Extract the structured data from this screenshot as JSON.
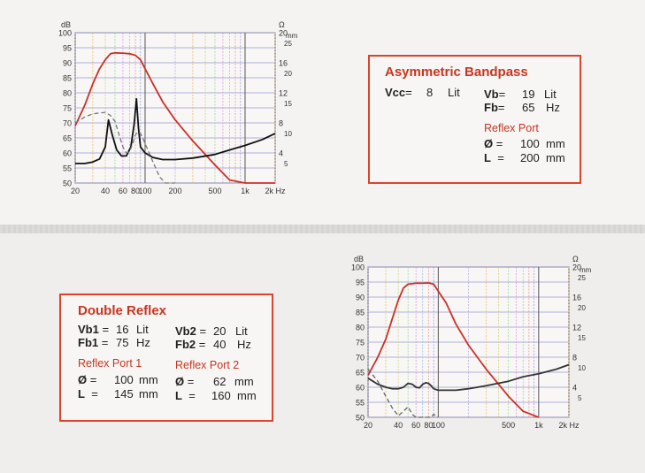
{
  "chart_data": [
    {
      "type": "line",
      "title": "",
      "x_scale": "log",
      "x_ticks": [
        "20",
        "40",
        "60",
        "80",
        "100",
        "200",
        "500",
        "1k",
        "2k Hz"
      ],
      "x_tick_values": [
        20,
        40,
        60,
        80,
        100,
        200,
        500,
        1000,
        2000
      ],
      "xlim": [
        20,
        2000
      ],
      "left_axis_unit": "dB",
      "left_ticks": [
        100,
        95,
        90,
        85,
        80,
        75,
        70,
        65,
        60,
        55,
        50
      ],
      "ylim": [
        50,
        100
      ],
      "right_axis_unit": "Ω",
      "right_axis_unit2": "mm",
      "right_ticks_ohm": [
        20,
        16,
        12,
        8,
        4
      ],
      "right_ticks_mm": [
        25,
        20,
        15,
        10,
        5
      ],
      "grid": true,
      "series": [
        {
          "color": "#cc2f26",
          "style": "solid",
          "x": [
            20,
            25,
            30,
            35,
            40,
            45,
            50,
            60,
            70,
            80,
            90,
            100,
            120,
            150,
            200,
            300,
            500,
            700,
            1000,
            1500,
            2000
          ],
          "y": [
            69,
            76,
            83,
            88,
            91,
            93,
            93.3,
            93.2,
            93,
            92.5,
            91,
            88,
            83,
            77,
            71,
            64,
            56,
            51,
            46,
            40,
            34
          ]
        },
        {
          "color": "#111111",
          "style": "solid",
          "x": [
            20,
            25,
            30,
            35,
            40,
            43,
            47,
            52,
            58,
            65,
            72,
            78,
            82,
            86,
            90,
            100,
            120,
            150,
            200,
            300,
            500,
            700,
            1000,
            1500,
            2000
          ],
          "y": [
            56.5,
            56.5,
            57,
            58,
            62,
            71,
            66,
            61,
            59,
            59,
            62,
            70,
            78,
            68,
            62,
            60,
            58.5,
            57.8,
            57.8,
            58.3,
            59.5,
            61,
            62.5,
            64.5,
            66.5
          ]
        },
        {
          "color": "#777777",
          "style": "dashed",
          "x": [
            20,
            25,
            30,
            35,
            40,
            45,
            50,
            55,
            60,
            65,
            70,
            75,
            80,
            85,
            90,
            95,
            100,
            110,
            120,
            140,
            160,
            180,
            200
          ],
          "y": [
            70,
            72,
            73,
            73.3,
            73.5,
            72.5,
            70.5,
            66,
            62,
            60,
            60.5,
            63,
            66,
            67,
            66.5,
            65,
            63,
            60,
            57,
            52,
            49,
            47,
            44
          ]
        }
      ]
    },
    {
      "type": "line",
      "title": "",
      "x_scale": "log",
      "x_ticks": [
        "20",
        "40",
        "60",
        "80",
        "100",
        "500",
        "1k",
        "2k Hz"
      ],
      "x_tick_values": [
        20,
        40,
        60,
        80,
        100,
        500,
        1000,
        2000
      ],
      "xlim": [
        20,
        2000
      ],
      "left_axis_unit": "dB",
      "left_ticks": [
        100,
        95,
        90,
        85,
        80,
        75,
        70,
        65,
        60,
        55,
        50
      ],
      "ylim": [
        50,
        100
      ],
      "right_axis_unit": "Ω",
      "right_axis_unit2": "mm",
      "right_ticks_ohm": [
        20,
        16,
        12,
        8,
        4
      ],
      "right_ticks_mm": [
        25,
        20,
        15,
        10,
        5
      ],
      "grid": true,
      "series": [
        {
          "color": "#cc2f26",
          "style": "solid",
          "x": [
            20,
            25,
            30,
            35,
            40,
            45,
            50,
            60,
            70,
            80,
            90,
            100,
            120,
            150,
            200,
            300,
            500,
            700,
            1000
          ],
          "y": [
            64,
            70,
            76,
            83,
            89,
            93,
            94.3,
            94.6,
            94.6,
            94.7,
            94.3,
            92,
            88,
            81,
            74,
            66,
            57,
            52,
            50
          ]
        },
        {
          "color": "#333333",
          "style": "solid",
          "x": [
            20,
            25,
            30,
            35,
            40,
            45,
            50,
            55,
            60,
            65,
            70,
            75,
            80,
            85,
            90,
            100,
            120,
            150,
            200,
            300,
            500,
            700,
            1000,
            1500,
            2000
          ],
          "y": [
            63,
            61,
            60,
            59.5,
            59.5,
            60,
            61.3,
            61,
            60,
            59.8,
            61,
            61.5,
            61.3,
            60.5,
            59.5,
            59,
            59,
            59,
            59.5,
            60.5,
            62,
            63.5,
            64.5,
            66,
            67.5
          ]
        },
        {
          "color": "#666666",
          "style": "dashed",
          "x": [
            20,
            25,
            30,
            35,
            40,
            45,
            50,
            55,
            60,
            65,
            70,
            75,
            80,
            85,
            90,
            95,
            100
          ],
          "y": [
            66,
            62,
            57,
            53,
            50.5,
            52,
            53.5,
            51,
            49,
            48,
            48.5,
            48,
            48,
            50,
            51,
            50.5,
            49
          ]
        }
      ]
    }
  ],
  "colors": {
    "accent": "#d9442e",
    "red_curve": "#cc2f26",
    "grid": "#9a9ad0"
  },
  "asym": {
    "title": "Asymmetric Bandpass",
    "vcc_label": "Vcc",
    "vcc_value": "8",
    "vb_label": "Vb",
    "vb_value": "19",
    "fb_label": "Fb",
    "fb_value": "65",
    "lit1": "Lit",
    "lit2": "Lit",
    "hz": "Hz",
    "port_title": "Reflex Port",
    "phi": "Ø",
    "phi_value": "100",
    "l_label": "L",
    "l_value": "200",
    "mm": "mm",
    "eq": "="
  },
  "dbl": {
    "title": "Double Reflex",
    "vb1_label": "Vb1",
    "vb1_value": "16",
    "fb1_label": "Fb1",
    "fb1_value": "75",
    "vb2_label": "Vb2",
    "vb2_value": "20",
    "fb2_label": "Fb2",
    "fb2_value": "40",
    "lit": "Lit",
    "hz": "Hz",
    "port1_title": "Reflex Port 1",
    "port2_title": "Reflex Port 2",
    "phi": "Ø",
    "phi1_value": "100",
    "l1_value": "145",
    "phi2_value": "62",
    "l2_value": "160",
    "l_label": "L",
    "mm": "mm",
    "eq": "="
  }
}
